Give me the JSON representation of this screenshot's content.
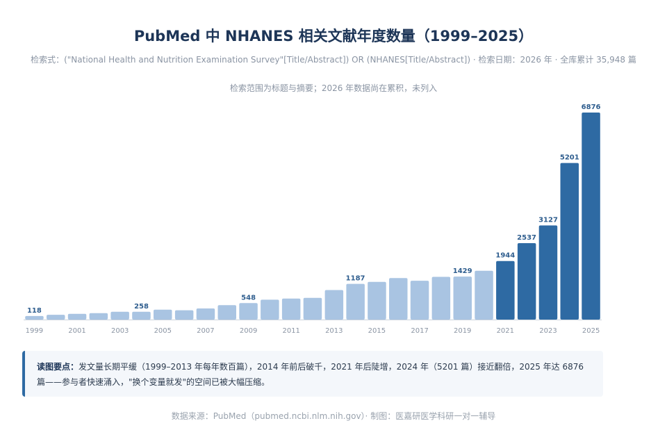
{
  "title": "PubMed 中 NHANES 相关文献年度数量（1999–2025）",
  "subtitle": "检索式：(\"National Health and Nutrition Examination Survey\"[Title/Abstract]) OR (NHANES[Title/Abstract]) · 检索日期：2026 年 · 全库累计 35,948 篇",
  "note": "检索范围为标题与摘要；2026 年数据尚在累积，未列入",
  "callout": {
    "heading": "读图要点：",
    "text": "发文量长期平缓（1999–2013 年每年数百篇），2014 年前后破千，2021 年后陡增，2024 年（5201 篇）接近翻倍，2025 年达 6876 篇——参与者快速涌入，\"换个变量就发\"的空间已被大幅压缩。"
  },
  "footer": "数据来源：PubMed（pubmed.ncbi.nlm.nih.gov）· 制图：医嘉研医学科研一对一辅导",
  "colors": {
    "light_bar": "#a9c4e2",
    "dark_bar": "#2e6aa3",
    "label": "#2e5d8e",
    "axis": "#8a94a3"
  },
  "chart_data": {
    "type": "bar",
    "categories": [
      "1999",
      "2000",
      "2001",
      "2002",
      "2003",
      "2004",
      "2005",
      "2006",
      "2007",
      "2008",
      "2009",
      "2010",
      "2011",
      "2012",
      "2013",
      "2014",
      "2015",
      "2016",
      "2017",
      "2018",
      "2019",
      "2020",
      "2021",
      "2022",
      "2023",
      "2024",
      "2025"
    ],
    "values": [
      118,
      160,
      190,
      215,
      258,
      258,
      330,
      310,
      370,
      480,
      548,
      660,
      700,
      720,
      980,
      1187,
      1250,
      1380,
      1290,
      1420,
      1429,
      1620,
      1944,
      2537,
      3127,
      5201,
      6876
    ],
    "labeled_years": [
      "1999",
      "2004",
      "2009",
      "2014",
      "2019",
      "2021",
      "2022",
      "2023",
      "2024",
      "2025"
    ],
    "x_tick_labels": [
      "1999",
      "2001",
      "2003",
      "2005",
      "2007",
      "2009",
      "2011",
      "2013",
      "2015",
      "2017",
      "2019",
      "2021",
      "2023",
      "2025"
    ],
    "highlight_from": "2021",
    "ylim": [
      0,
      6876
    ],
    "grid": false,
    "legend": "none",
    "xlabel": "",
    "ylabel": ""
  }
}
